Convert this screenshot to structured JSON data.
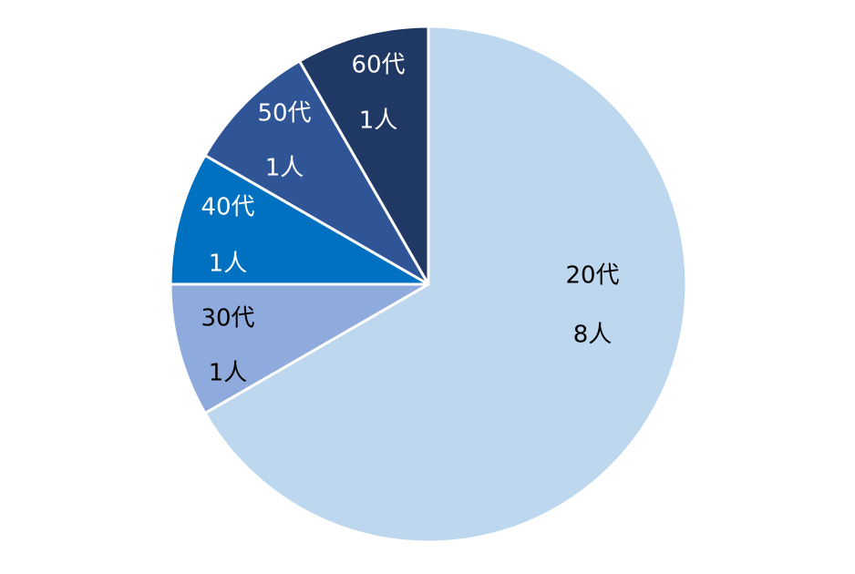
{
  "chart_data": {
    "type": "pie",
    "title": "",
    "start_angle_deg": 0,
    "direction": "clockwise",
    "legend": "none",
    "categories": [
      "20代",
      "30代",
      "40代",
      "50代",
      "60代"
    ],
    "values": [
      8,
      1,
      1,
      1,
      1
    ],
    "value_labels": [
      "8人",
      "1人",
      "1人",
      "1人",
      "1人"
    ],
    "colors": [
      "#BDD7EE",
      "#8FAADC",
      "#0070C0",
      "#2F5597",
      "#1F3864"
    ],
    "label_colors": [
      "#000000",
      "#000000",
      "#FFFFFF",
      "#FFFFFF",
      "#FFFFFF"
    ]
  }
}
